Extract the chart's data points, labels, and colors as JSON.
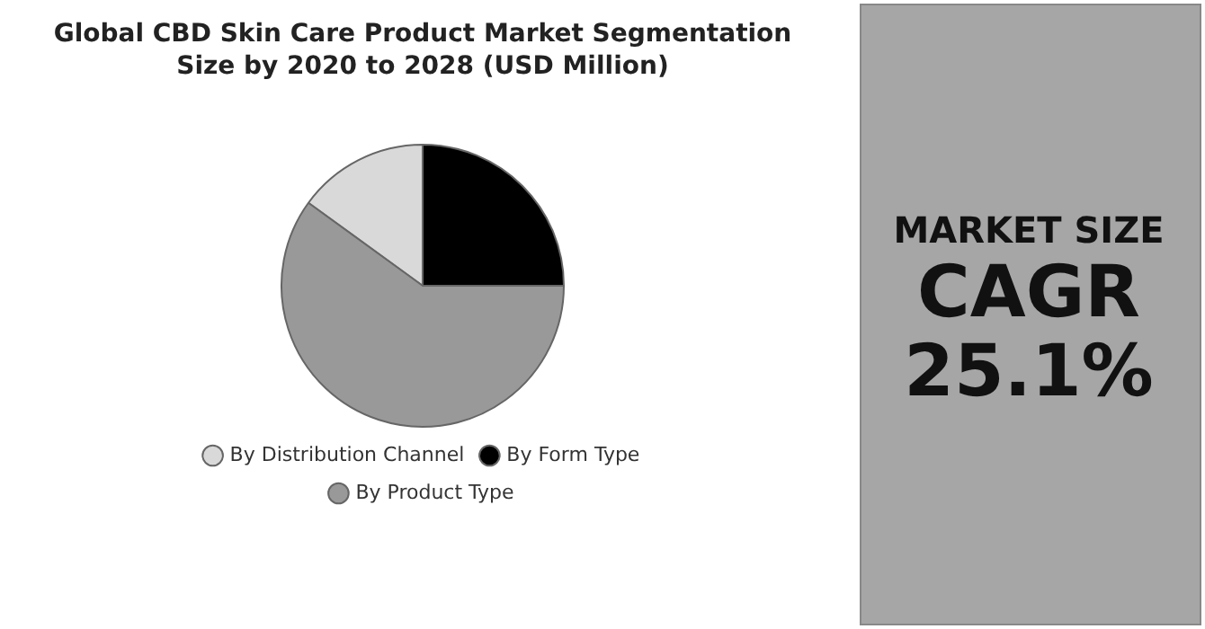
{
  "chart_data": {
    "type": "pie",
    "title": "Global CBD Skin Care Product Market Segmentation Size by 2020 to 2028 (USD Million)",
    "categories": [
      "By Distribution Channel",
      "By Form Type",
      "By Product Type"
    ],
    "values": [
      15,
      25,
      60
    ],
    "colors": [
      "#d9d9d9",
      "#000000",
      "#999999"
    ],
    "legend": "bottom",
    "annotations": [
      "MARKET SIZE",
      "CAGR",
      "25.1%"
    ]
  }
}
